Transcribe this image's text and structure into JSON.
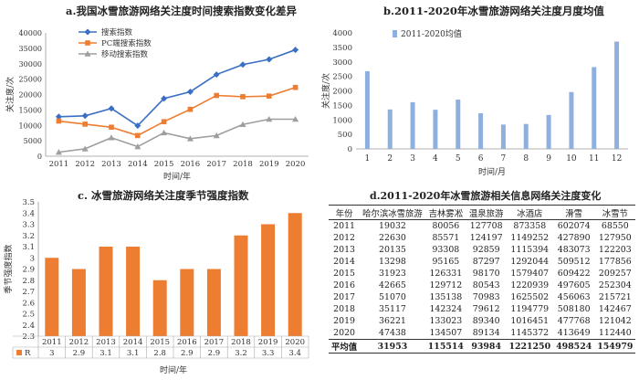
{
  "chart_data": [
    {
      "id": "a",
      "type": "line",
      "title": "a.我国冰雪旅游网络关注度时间搜索指数变化差异",
      "xlabel": "时间/年",
      "ylabel": "关注度/次",
      "categories": [
        "2011",
        "2012",
        "2013",
        "2014",
        "2015",
        "2016",
        "2017",
        "2018",
        "2019",
        "2020"
      ],
      "ylim": [
        0,
        40000
      ],
      "yticks": [
        0,
        5000,
        10000,
        15000,
        20000,
        25000,
        30000,
        35000,
        40000
      ],
      "legend_position": "top-left",
      "grid": false,
      "series": [
        {
          "name": "搜索指数",
          "color": "#3a6fc4",
          "marker": "diamond",
          "values": [
            12800,
            13100,
            15500,
            9900,
            18700,
            20900,
            26500,
            29700,
            31400,
            34500
          ]
        },
        {
          "name": "PC端搜索指数",
          "color": "#ed7d31",
          "marker": "square",
          "values": [
            11400,
            10400,
            9400,
            6700,
            11200,
            15200,
            19700,
            19300,
            19500,
            22300
          ]
        },
        {
          "name": "移动搜索指数",
          "color": "#9e9e9e",
          "marker": "triangle",
          "values": [
            1300,
            2400,
            6000,
            3100,
            7600,
            5700,
            6700,
            10300,
            12000,
            12000
          ]
        }
      ]
    },
    {
      "id": "b",
      "type": "bar",
      "title": "b.2011-2020年冰雪旅游网络关注度月度均值",
      "xlabel": "时间/月",
      "ylabel": "关注度/次",
      "categories": [
        "1",
        "2",
        "3",
        "4",
        "5",
        "6",
        "7",
        "8",
        "9",
        "10",
        "11",
        "12"
      ],
      "ylim": [
        0,
        4000
      ],
      "yticks": [
        0,
        500,
        1000,
        1500,
        2000,
        2500,
        3000,
        3500,
        4000
      ],
      "legend_position": "top-left",
      "grid": false,
      "series": [
        {
          "name": "2011-2020均值",
          "color": "#8fafdf",
          "values": [
            2680,
            1360,
            1610,
            1350,
            1700,
            1230,
            840,
            860,
            1170,
            1960,
            2820,
            3700
          ]
        }
      ]
    },
    {
      "id": "c",
      "type": "bar",
      "title": "c. 冰雪旅游网络关注度季节强度指数",
      "xlabel": "时间/年",
      "ylabel": "季节强度指数",
      "categories": [
        "2011",
        "2012",
        "2013",
        "2014",
        "2015",
        "2016",
        "2017",
        "2018",
        "2019",
        "2020"
      ],
      "ylim": [
        2.3,
        3.5
      ],
      "yticks": [
        2.3,
        2.4,
        2.5,
        2.6,
        2.7,
        2.8,
        2.9,
        3,
        3.1,
        3.2,
        3.3,
        3.4,
        3.5
      ],
      "ytick_labels": [
        "2.3",
        "2.4",
        "2.5",
        "2.6",
        "2.7",
        "2.8",
        "2.9",
        "3",
        "3.1",
        "3.2",
        "3.3",
        "3.4",
        "3.5"
      ],
      "grid": false,
      "series": [
        {
          "name": "R",
          "color": "#ed7d31",
          "values": [
            3,
            2.9,
            3.1,
            3.1,
            2.8,
            2.9,
            2.9,
            3.2,
            3.3,
            3.4
          ],
          "value_labels": [
            "3",
            "2.9",
            "3.1",
            "3.1",
            "2.8",
            "2.9",
            "2.9",
            "3.2",
            "3.3",
            "3.4"
          ]
        }
      ]
    },
    {
      "id": "d",
      "type": "table",
      "title": "d.2011-2020年冰雪旅游相关信息网络关注度变化",
      "columns": [
        "年份",
        "哈尔滨冰雪旅游",
        "吉林雾凇",
        "温泉旅游",
        "冰酒店",
        "滑雪",
        "冰雪节"
      ],
      "rows": [
        [
          "2011",
          "19032",
          "80056",
          "127708",
          "873358",
          "602074",
          "68550"
        ],
        [
          "2012",
          "22630",
          "85571",
          "124197",
          "1149252",
          "427890",
          "127950"
        ],
        [
          "2013",
          "20135",
          "93308",
          "92859",
          "1115394",
          "483073",
          "122203"
        ],
        [
          "2014",
          "13298",
          "95165",
          "87297",
          "1292044",
          "509512",
          "177856"
        ],
        [
          "2015",
          "31923",
          "126331",
          "98170",
          "1579407",
          "609422",
          "209257"
        ],
        [
          "2016",
          "42665",
          "129712",
          "80543",
          "1220939",
          "497605",
          "252304"
        ],
        [
          "2017",
          "51070",
          "135138",
          "70983",
          "1625502",
          "456063",
          "215721"
        ],
        [
          "2018",
          "35117",
          "142324",
          "79612",
          "1194779",
          "508180",
          "142467"
        ],
        [
          "2019",
          "36221",
          "133023",
          "89340",
          "1016451",
          "477768",
          "121042"
        ],
        [
          "2020",
          "47438",
          "134507",
          "89134",
          "1145372",
          "413649",
          "112440"
        ]
      ],
      "footer": [
        "平均值",
        "31953",
        "115514",
        "93984",
        "1221250",
        "498524",
        "154979"
      ]
    }
  ]
}
